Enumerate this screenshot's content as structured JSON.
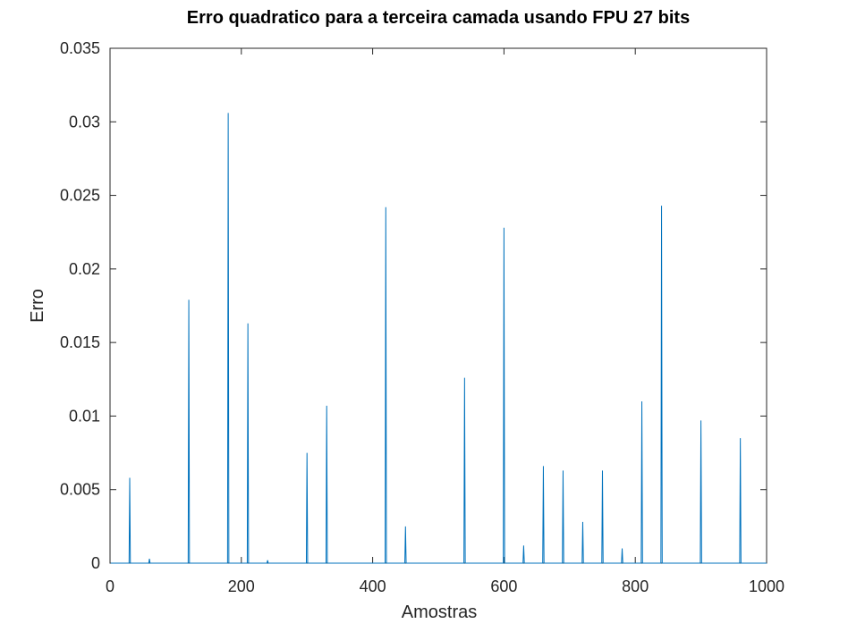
{
  "chart_data": {
    "type": "line",
    "title": "Erro quadratico para a terceira camada usando FPU 27 bits",
    "xlabel": "Amostras",
    "ylabel": "Erro",
    "xlim": [
      0,
      1000
    ],
    "ylim": [
      0,
      0.035
    ],
    "xticks": [
      0,
      200,
      400,
      600,
      800,
      1000
    ],
    "xtick_labels": [
      "0",
      "200",
      "400",
      "600",
      "800",
      "1000"
    ],
    "yticks": [
      0,
      0.005,
      0.01,
      0.015,
      0.02,
      0.025,
      0.03,
      0.035
    ],
    "ytick_labels": [
      "0",
      "0.005",
      "0.01",
      "0.015",
      "0.02",
      "0.025",
      "0.03",
      "0.035"
    ],
    "grid": false,
    "box": true,
    "series_color": "#0072bd",
    "x_range": [
      1,
      1000
    ],
    "baseline": 0,
    "spikes": [
      {
        "x": 30,
        "y": 0.0058
      },
      {
        "x": 60,
        "y": 0.0003
      },
      {
        "x": 120,
        "y": 0.0179
      },
      {
        "x": 180,
        "y": 0.0306
      },
      {
        "x": 210,
        "y": 0.0163
      },
      {
        "x": 240,
        "y": 0.0002
      },
      {
        "x": 300,
        "y": 0.0075
      },
      {
        "x": 330,
        "y": 0.0107
      },
      {
        "x": 420,
        "y": 0.0242
      },
      {
        "x": 450,
        "y": 0.0025
      },
      {
        "x": 540,
        "y": 0.0126
      },
      {
        "x": 600,
        "y": 0.0228
      },
      {
        "x": 630,
        "y": 0.0012
      },
      {
        "x": 660,
        "y": 0.0066
      },
      {
        "x": 690,
        "y": 0.0063
      },
      {
        "x": 720,
        "y": 0.0028
      },
      {
        "x": 750,
        "y": 0.0063
      },
      {
        "x": 780,
        "y": 0.001
      },
      {
        "x": 810,
        "y": 0.011
      },
      {
        "x": 840,
        "y": 0.0243
      },
      {
        "x": 900,
        "y": 0.0097
      },
      {
        "x": 960,
        "y": 0.0085
      }
    ]
  }
}
